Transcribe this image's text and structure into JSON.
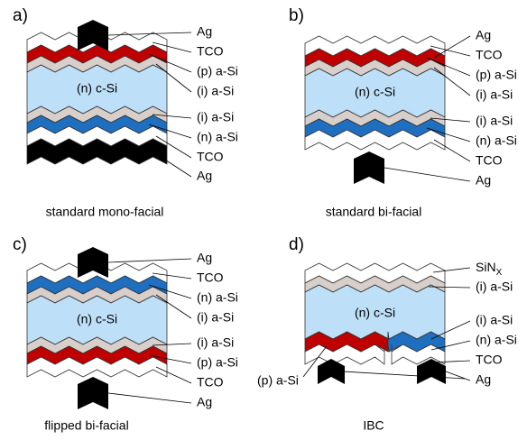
{
  "panels": [
    {
      "label": "a)",
      "caption": "standard mono-facial",
      "center": "(n) c-Si",
      "layers": [
        "Ag",
        "TCO",
        "(p) a-Si",
        "(i) a-Si",
        "(i) a-Si",
        "(n) a-Si",
        "TCO",
        "Ag"
      ]
    },
    {
      "label": "b)",
      "caption": "standard bi-facial",
      "center": "(n) c-Si",
      "layers": [
        "Ag",
        "TCO",
        "(p) a-Si",
        "(i) a-Si",
        "(i) a-Si",
        "(n) a-Si",
        "TCO",
        "Ag"
      ]
    },
    {
      "label": "c)",
      "caption": "flipped bi-facial",
      "center": "(n) c-Si",
      "layers": [
        "Ag",
        "TCO",
        "(n) a-Si",
        "(i) a-Si",
        "(i) a-Si",
        "(p) a-Si",
        "TCO",
        "Ag"
      ]
    },
    {
      "label": "d)",
      "caption": "IBC",
      "center": "(n) c-Si",
      "layers": [
        {
          "text": "SiN",
          "subscript": "X"
        },
        "(i) a-Si",
        "(i) a-Si",
        "(n) a-Si",
        "TCO",
        "Ag",
        "(p) a-Si"
      ]
    }
  ]
}
